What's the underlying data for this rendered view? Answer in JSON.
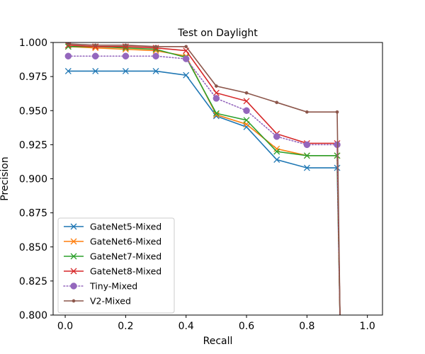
{
  "chart_data": {
    "type": "line",
    "title": "Test on Daylight",
    "xlabel": "Recall",
    "ylabel": "Precision",
    "xlim": [
      -0.04,
      1.05
    ],
    "ylim": [
      0.8,
      1.0
    ],
    "xticks": [
      0.0,
      0.2,
      0.4,
      0.6,
      0.8,
      1.0
    ],
    "xtick_labels": [
      "0.0",
      "0.2",
      "0.4",
      "0.6",
      "0.8",
      "1.0"
    ],
    "yticks": [
      0.8,
      0.825,
      0.85,
      0.875,
      0.9,
      0.925,
      0.95,
      0.975,
      1.0
    ],
    "ytick_labels": [
      "0.800",
      "0.825",
      "0.850",
      "0.875",
      "0.900",
      "0.925",
      "0.950",
      "0.975",
      "1.000"
    ],
    "grid": false,
    "legend_position": "lower-left",
    "series": [
      {
        "name": "GateNet5-Mixed",
        "color": "#1f77b4",
        "marker": "x",
        "linestyle": "solid",
        "x": [
          0.01,
          0.1,
          0.2,
          0.3,
          0.4,
          0.5,
          0.6,
          0.7,
          0.8,
          0.9,
          0.91
        ],
        "y": [
          0.979,
          0.979,
          0.979,
          0.979,
          0.976,
          0.946,
          0.938,
          0.914,
          0.908,
          0.908,
          0.79
        ]
      },
      {
        "name": "GateNet6-Mixed",
        "color": "#ff7f0e",
        "marker": "x",
        "linestyle": "solid",
        "x": [
          0.01,
          0.1,
          0.2,
          0.3,
          0.4,
          0.5,
          0.6,
          0.7,
          0.8,
          0.9,
          0.91
        ],
        "y": [
          0.997,
          0.996,
          0.995,
          0.994,
          0.99,
          0.947,
          0.94,
          0.922,
          0.917,
          0.917,
          0.79
        ]
      },
      {
        "name": "GateNet7-Mixed",
        "color": "#2ca02c",
        "marker": "x",
        "linestyle": "solid",
        "x": [
          0.01,
          0.1,
          0.2,
          0.3,
          0.4,
          0.5,
          0.6,
          0.7,
          0.8,
          0.9,
          0.91
        ],
        "y": [
          0.997,
          0.997,
          0.996,
          0.995,
          0.989,
          0.948,
          0.943,
          0.92,
          0.917,
          0.917,
          0.79
        ]
      },
      {
        "name": "GateNet8-Mixed",
        "color": "#d62728",
        "marker": "x",
        "linestyle": "solid",
        "x": [
          0.01,
          0.1,
          0.2,
          0.3,
          0.4,
          0.5,
          0.6,
          0.7,
          0.8,
          0.9,
          0.91
        ],
        "y": [
          0.998,
          0.997,
          0.997,
          0.996,
          0.994,
          0.963,
          0.957,
          0.933,
          0.926,
          0.926,
          0.79
        ]
      },
      {
        "name": "Tiny-Mixed",
        "color": "#9467bd",
        "marker": "o",
        "linestyle": "dotted",
        "x": [
          0.01,
          0.1,
          0.2,
          0.3,
          0.4,
          0.5,
          0.6,
          0.7,
          0.8,
          0.9,
          0.91
        ],
        "y": [
          0.99,
          0.99,
          0.99,
          0.99,
          0.988,
          0.959,
          0.95,
          0.931,
          0.925,
          0.925,
          0.79
        ]
      },
      {
        "name": "V2-Mixed",
        "color": "#8c564b",
        "marker": ".",
        "linestyle": "solid",
        "x": [
          0.01,
          0.1,
          0.2,
          0.3,
          0.4,
          0.5,
          0.6,
          0.7,
          0.8,
          0.9,
          0.91
        ],
        "y": [
          0.999,
          0.998,
          0.998,
          0.997,
          0.997,
          0.968,
          0.963,
          0.956,
          0.949,
          0.949,
          0.79
        ]
      }
    ]
  }
}
